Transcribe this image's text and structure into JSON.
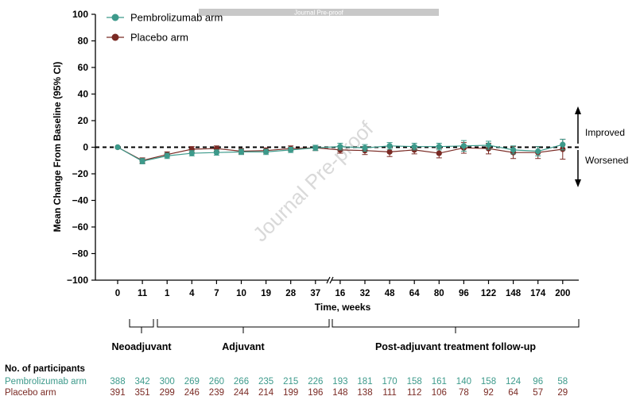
{
  "banner": "Journal Pre-proof",
  "watermark": "Journal Pre-proof",
  "chart_data": {
    "type": "line",
    "title": "",
    "xlabel": "Time, weeks",
    "ylabel": "Mean Change From Baseline (95% CI)",
    "ylim": [
      -100,
      100
    ],
    "yticks": [
      100,
      80,
      60,
      40,
      20,
      0,
      -20,
      -40,
      -60,
      -80,
      -100
    ],
    "categories": [
      "0",
      "11",
      "1",
      "4",
      "7",
      "10",
      "19",
      "28",
      "37",
      "16",
      "32",
      "48",
      "64",
      "80",
      "96",
      "122",
      "148",
      "174",
      "200"
    ],
    "reference_line": 0,
    "legend_position": "top-left",
    "series": [
      {
        "name": "Pembrolizumab arm",
        "color": "#3d9a8b",
        "values": [
          0,
          -10.5,
          -6.5,
          -4.5,
          -4,
          -3.5,
          -3.5,
          -2,
          -0.5,
          0.5,
          -0.5,
          1,
          0.5,
          0.5,
          1,
          1.5,
          -2,
          -3,
          2
        ],
        "ci": [
          [
            0,
            0
          ],
          [
            -12.5,
            -8.5
          ],
          [
            -8.5,
            -4.5
          ],
          [
            -6.5,
            -2.5
          ],
          [
            -6,
            -2
          ],
          [
            -5.5,
            -1.5
          ],
          [
            -5.5,
            -1.5
          ],
          [
            -4,
            0
          ],
          [
            -2.5,
            1.5
          ],
          [
            -2,
            3
          ],
          [
            -3,
            2
          ],
          [
            -1.5,
            3.5
          ],
          [
            -2,
            3
          ],
          [
            -2,
            3
          ],
          [
            -3,
            5
          ],
          [
            -1.5,
            4.5
          ],
          [
            -5,
            1
          ],
          [
            -6.5,
            0.5
          ],
          [
            -2,
            6
          ]
        ]
      },
      {
        "name": "Placebo arm",
        "color": "#7a2a24",
        "values": [
          0,
          -10,
          -5.5,
          -1.5,
          -1,
          -3,
          -2.5,
          -1,
          -0.5,
          -2,
          -2.5,
          -3.5,
          -2,
          -4.5,
          -0.5,
          -1,
          -4,
          -4,
          -1.5
        ],
        "ci": [
          [
            0,
            0
          ],
          [
            -12,
            -8
          ],
          [
            -7.5,
            -3.5
          ],
          [
            -3.5,
            0.5
          ],
          [
            -3,
            1
          ],
          [
            -5,
            -1
          ],
          [
            -4.5,
            -0.5
          ],
          [
            -3,
            1
          ],
          [
            -2.5,
            1.5
          ],
          [
            -4.5,
            0.5
          ],
          [
            -5.5,
            0.5
          ],
          [
            -7,
            0
          ],
          [
            -5,
            1
          ],
          [
            -8,
            -1
          ],
          [
            -4.5,
            3.5
          ],
          [
            -5,
            3
          ],
          [
            -8.5,
            0.5
          ],
          [
            -8.5,
            0.5
          ],
          [
            -9,
            6
          ]
        ]
      }
    ],
    "annotations": {
      "up": "Improved",
      "down": "Worsened"
    },
    "phases": [
      {
        "label": "Neoadjuvant",
        "from": 0,
        "to": 1
      },
      {
        "label": "Adjuvant",
        "from": 2,
        "to": 8
      },
      {
        "label": "Post-adjuvant treatment follow-up",
        "from": 9,
        "to": 18
      }
    ]
  },
  "participants": {
    "title": "No. of participants",
    "rows": [
      {
        "name": "Pembrolizumab arm",
        "color": "#3d9a8b",
        "values": [
          388,
          342,
          300,
          269,
          260,
          266,
          235,
          215,
          226,
          193,
          181,
          170,
          158,
          161,
          140,
          158,
          124,
          96,
          58
        ]
      },
      {
        "name": "Placebo arm",
        "color": "#7a2a24",
        "values": [
          391,
          351,
          299,
          246,
          239,
          244,
          214,
          199,
          196,
          148,
          138,
          111,
          112,
          106,
          78,
          92,
          64,
          57,
          29
        ]
      }
    ]
  }
}
